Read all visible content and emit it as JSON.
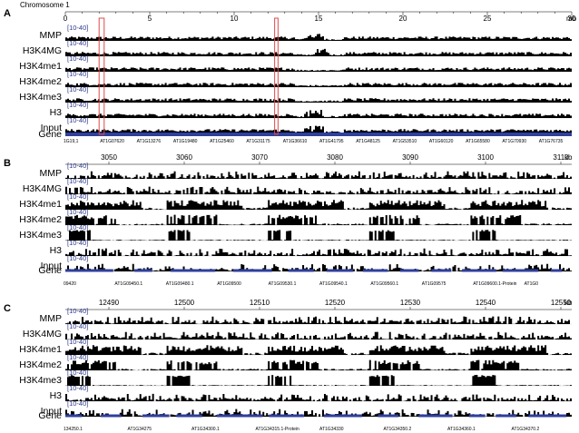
{
  "chart_data": [
    {
      "type": "area",
      "panel_label": "A",
      "axis_title": "Chromosome 1",
      "unit": "mb",
      "range_label": "[10-40]",
      "x_ticks": [
        "0",
        "5",
        "10",
        "15",
        "20",
        "25",
        "30"
      ],
      "tracks": [
        "MMP",
        "H3K4MG",
        "H3K4me1",
        "H3K4me2",
        "H3K4me3",
        "H3",
        "Input"
      ],
      "gene_track_label": "Gene",
      "gene_ids": [
        "1G19,1",
        "AT1G07620",
        "AT1G13276",
        "AT1G19480",
        "AT1G25460",
        "AT1G31175",
        "AT1G36610",
        "AT1G41795",
        "AT1G48125",
        "AT1G53510",
        "AT1G60120",
        "AT1G65580",
        "AT1G70930",
        "AT1G76735"
      ],
      "highlight_regions_mb": [
        [
          2.0,
          2.3
        ],
        [
          12.4,
          12.6
        ]
      ]
    },
    {
      "type": "area",
      "panel_label": "B",
      "unit": "kb",
      "range_label": "[10-40]",
      "x_ticks": [
        "3050",
        "3060",
        "3070",
        "3080",
        "3090",
        "3100",
        "3110"
      ],
      "tracks": [
        "MMP",
        "H3K4MG",
        "H3K4me1",
        "H3K4me2",
        "H3K4me3",
        "H3",
        "Input"
      ],
      "gene_track_label": "Gene",
      "gene_ids": [
        "09420",
        "AT1G09450.1",
        "AT1G09480.1",
        "AT1G09500",
        "AT1G09530.1",
        "AT1G09540.1",
        "AT1G09560.1",
        "AT1G09575",
        "AT1G09600.1-Protein",
        "AT1G0"
      ]
    },
    {
      "type": "area",
      "panel_label": "C",
      "unit": "kb",
      "range_label": "[10-40]",
      "x_ticks": [
        "12490",
        "12500",
        "12510",
        "12520",
        "12530",
        "12540",
        "12550"
      ],
      "tracks": [
        "MMP",
        "H3K4MG",
        "H3K4me1",
        "H3K4me2",
        "H3K4me3",
        "H3",
        "Input"
      ],
      "gene_track_label": "Gene",
      "gene_ids": [
        "134250.1",
        "AT1G34275",
        "AT1G34300.1",
        "AT1G34315.1-Protein",
        "AT1G34330",
        "AT1G34350.2",
        "AT1G34360.1",
        "AT1G34370.2"
      ]
    }
  ],
  "colors": {
    "signal": "#000000",
    "gene_bar": "#2f3f9c",
    "range_label": "#2e3a8c",
    "highlight": "#e04848"
  }
}
